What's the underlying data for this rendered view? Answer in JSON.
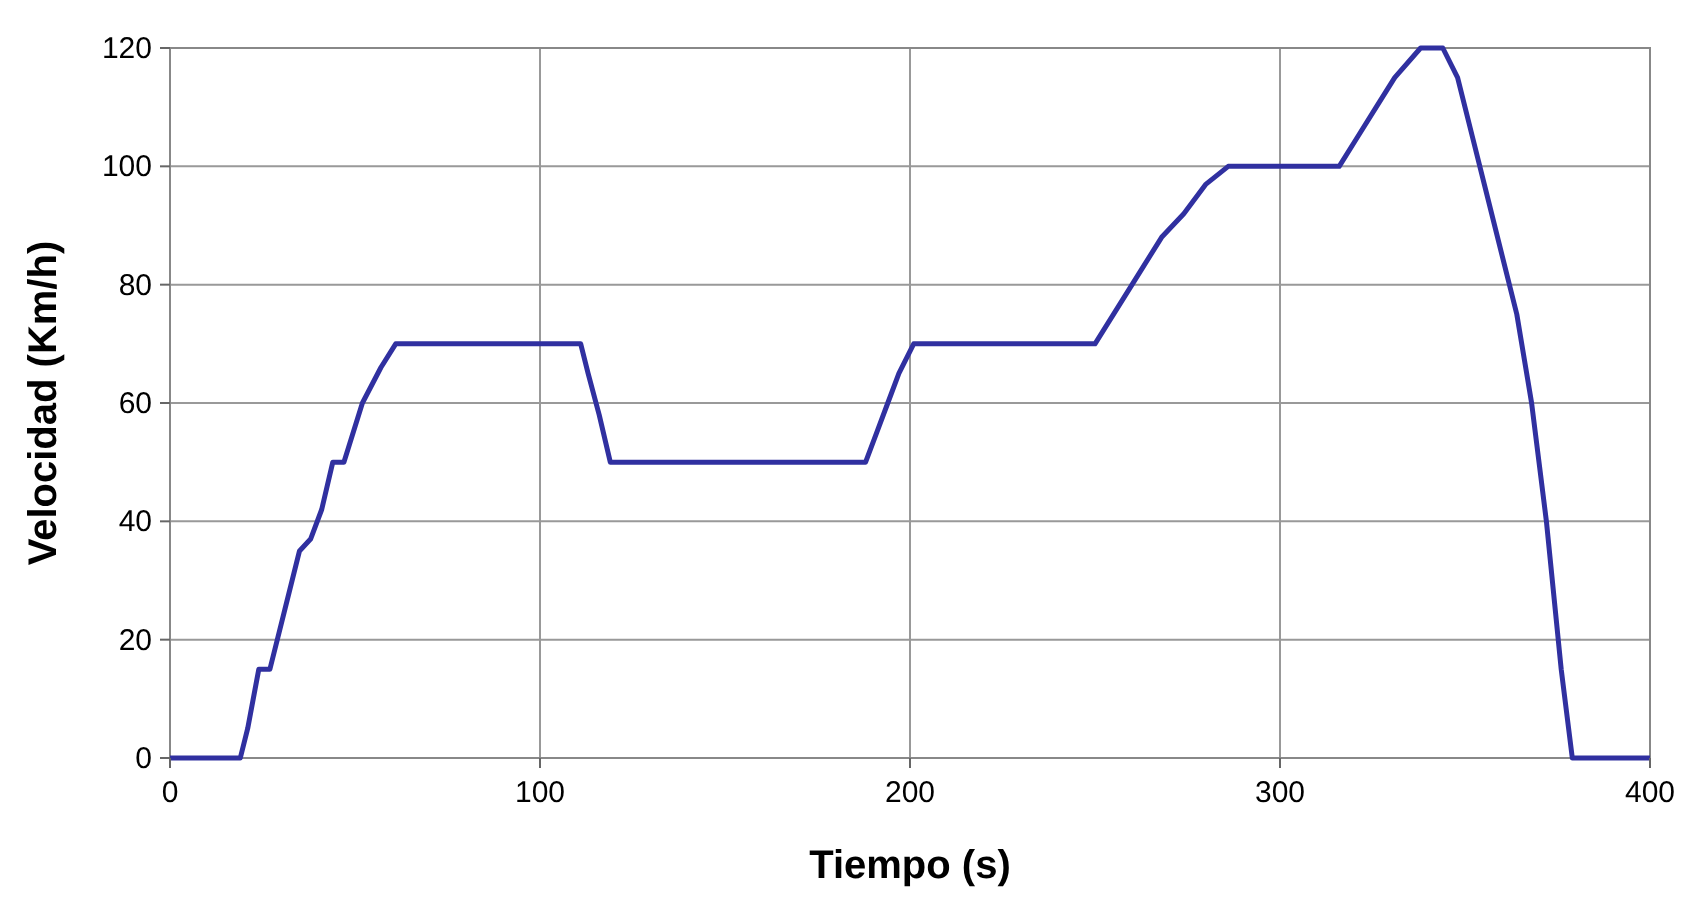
{
  "chart_data": {
    "type": "line",
    "xlabel": "Tiempo (s)",
    "ylabel": "Velocidad (Km/h)",
    "xlim": [
      0,
      400
    ],
    "ylim": [
      0,
      120
    ],
    "xticks": [
      0,
      100,
      200,
      300,
      400
    ],
    "yticks": [
      0,
      20,
      40,
      60,
      80,
      100,
      120
    ],
    "grid": true,
    "marker": "none",
    "line_style": "solid",
    "series": [
      {
        "color": "#3030a0",
        "x": [
          0,
          19,
          21,
          24,
          27,
          31,
          35,
          38,
          41,
          44,
          47,
          52,
          57,
          61,
          111,
          113,
          116,
          119,
          188,
          191,
          194,
          197,
          201,
          250,
          256,
          262,
          268,
          274,
          280,
          286,
          316,
          321,
          326,
          331,
          338,
          344,
          348,
          352,
          356,
          360,
          364,
          368,
          372,
          376,
          379,
          400
        ],
        "values": [
          0,
          0,
          5,
          15,
          15,
          25,
          35,
          37,
          42,
          50,
          50,
          60,
          66,
          70,
          70,
          65,
          58,
          50,
          50,
          55,
          60,
          65,
          70,
          70,
          76,
          82,
          88,
          92,
          97,
          100,
          100,
          105,
          110,
          115,
          120,
          120,
          115,
          105,
          95,
          85,
          75,
          60,
          40,
          15,
          0,
          0
        ]
      }
    ]
  }
}
